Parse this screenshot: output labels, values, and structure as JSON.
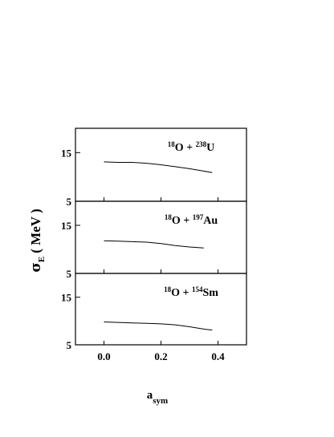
{
  "chart_data": {
    "type": "line",
    "xlabel": {
      "main": "a",
      "sub": "sym"
    },
    "ylabel": {
      "sigma": "σ",
      "sub": "E",
      "rest": "( MeV )"
    },
    "xlim": [
      -0.1,
      0.5
    ],
    "ylim": [
      5,
      20
    ],
    "x_ticks": [
      0.0,
      0.2,
      0.4
    ],
    "x_tick_labels": [
      "0.0",
      "0.2",
      "0.4"
    ],
    "y_ticks": [
      5,
      15
    ],
    "y_tick_labels": [
      "5",
      "15"
    ],
    "grid": false,
    "panels": [
      {
        "label": {
          "a1": "18",
          "b1": "O + ",
          "a2": "238",
          "b2": "U"
        },
        "x": [
          0.0,
          0.05,
          0.1,
          0.15,
          0.2,
          0.25,
          0.3,
          0.35,
          0.38
        ],
        "y": [
          13.1,
          13.0,
          13.0,
          12.8,
          12.5,
          12.1,
          11.7,
          11.2,
          10.9
        ]
      },
      {
        "label": {
          "a1": "18",
          "b1": "O + ",
          "a2": "197",
          "b2": "Au"
        },
        "x": [
          0.0,
          0.05,
          0.1,
          0.15,
          0.2,
          0.25,
          0.3,
          0.35
        ],
        "y": [
          11.8,
          11.7,
          11.6,
          11.5,
          11.2,
          10.8,
          10.5,
          10.3
        ]
      },
      {
        "label": {
          "a1": "18",
          "b1": "O + ",
          "a2": "154",
          "b2": "Sm"
        },
        "x": [
          0.0,
          0.05,
          0.1,
          0.15,
          0.2,
          0.25,
          0.3,
          0.35,
          0.38
        ],
        "y": [
          9.8,
          9.7,
          9.6,
          9.5,
          9.4,
          9.2,
          8.8,
          8.3,
          8.1
        ]
      }
    ]
  }
}
